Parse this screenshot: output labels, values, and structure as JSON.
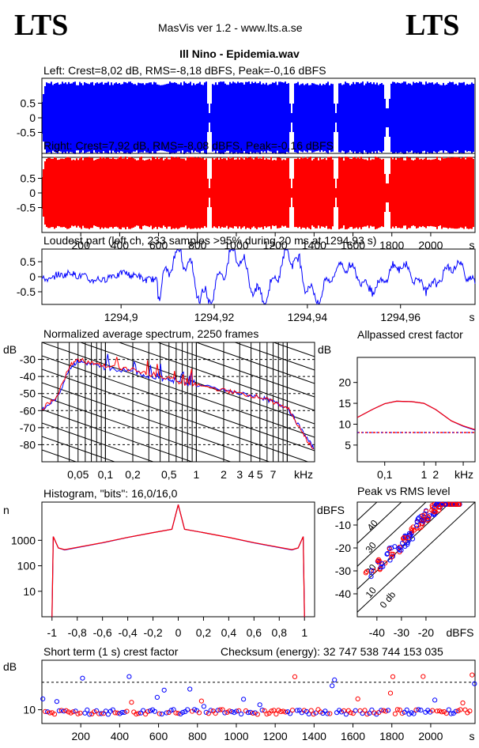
{
  "header": {
    "logo_left": "LTS",
    "logo_right": "LTS",
    "app": "MasVis ver 1.2 - www.lts.a.se",
    "track": "Ill Nino - Epidemia.wav"
  },
  "colors": {
    "left": "#0000ff",
    "right": "#ff0000",
    "grid": "#000000"
  },
  "chart_data": [
    {
      "id": "left-waveform",
      "type": "area",
      "title": "Left: Crest=8,02 dB, RMS=-8,18 dBFS, Peak=-0,16 dBFS",
      "yticks": [
        "0.5",
        "0",
        "-0.5"
      ],
      "ylim": [
        -1,
        1
      ],
      "xlim": [
        0,
        2228
      ],
      "series": [
        {
          "name": "Left",
          "color": "#0000ff"
        }
      ]
    },
    {
      "id": "right-waveform",
      "type": "area",
      "title": "Right: Crest=7,92 dB, RMS=-8,08 dBFS, Peak=-0,16 dBFS",
      "yticks": [
        "0.5",
        "0",
        "-0.5"
      ],
      "ylim": [
        -1,
        1
      ],
      "xlim": [
        0,
        2228
      ],
      "xticks": [
        "200",
        "400",
        "600",
        "800",
        "1000",
        "1200",
        "1400",
        "1600",
        "1800",
        "2000"
      ],
      "xunit": "s",
      "series": [
        {
          "name": "Right",
          "color": "#ff0000"
        }
      ]
    },
    {
      "id": "loudest-part",
      "type": "line",
      "title": "Loudest part (left  ch, 233 samples >95% during 20 ms at 1294,93 s)",
      "yticks": [
        "0.5",
        "0",
        "-0.5"
      ],
      "ylim": [
        -1,
        1
      ],
      "xticks": [
        "1294,9",
        "1294,92",
        "1294,94",
        "1294,96"
      ],
      "xunit": "s",
      "xlim": [
        1294.883,
        1294.976
      ]
    },
    {
      "id": "avg-spectrum",
      "type": "line",
      "title": "Normalized average spectrum, 2250 frames",
      "ylabel": "dB",
      "yticks": [
        "-30",
        "-40",
        "-50",
        "-60",
        "-70",
        "-80"
      ],
      "ylim": [
        -90,
        -20
      ],
      "xticks": [
        "0,05",
        "0,1",
        "0,2",
        "0,5",
        "1",
        "2",
        "3",
        "4",
        "5",
        "7"
      ],
      "xunit": "kHz",
      "x": [
        0.02,
        0.03,
        0.04,
        0.05,
        0.07,
        0.1,
        0.2,
        0.3,
        0.5,
        0.7,
        1,
        2,
        3,
        5,
        7,
        10,
        15,
        20
      ],
      "series": [
        {
          "name": "Left",
          "color": "#0000ff",
          "values": [
            -60,
            -52,
            -35,
            -31,
            -33,
            -35,
            -37,
            -40,
            -42,
            -44,
            -45,
            -48,
            -50,
            -52,
            -55,
            -58,
            -73,
            -83
          ]
        },
        {
          "name": "Right",
          "color": "#ff0000",
          "values": [
            -59,
            -51,
            -34,
            -30,
            -32,
            -34,
            -36,
            -39,
            -41,
            -44,
            -45,
            -48,
            -50,
            -52,
            -55,
            -58,
            -74,
            -84
          ]
        }
      ]
    },
    {
      "id": "allpassed-crest",
      "type": "line",
      "title": "Allpassed crest factor",
      "ylabel": "dB",
      "yticks": [
        "20",
        "15",
        "10",
        "5"
      ],
      "ylim": [
        1,
        26
      ],
      "xticks": [
        "0,1",
        "1",
        "2"
      ],
      "xunit": "kHz",
      "x": [
        0.02,
        0.05,
        0.1,
        0.2,
        0.5,
        1,
        2,
        5,
        10,
        20
      ],
      "series": [
        {
          "name": "Left",
          "color": "#0000ff",
          "values": [
            11.6,
            13.6,
            14.9,
            15.5,
            15.4,
            15,
            13.5,
            10.8,
            9.5,
            8.6
          ]
        },
        {
          "name": "Right",
          "color": "#ff0000",
          "values": [
            11.6,
            13.6,
            14.9,
            15.5,
            15.4,
            15,
            13.5,
            10.8,
            9.6,
            8.7
          ]
        }
      ],
      "reference_line": 8
    },
    {
      "id": "histogram",
      "type": "line",
      "title": "Histogram, \"bits\": 16,0/16,0",
      "ylabel": "n",
      "yticks": [
        "1000",
        "100",
        "10"
      ],
      "xticks": [
        "-1",
        "-0,8",
        "-0,6",
        "-0,4",
        "-0,2",
        "0",
        "0,2",
        "0,4",
        "0,6",
        "0,8",
        "1"
      ],
      "xlim": [
        -1.08,
        1.08
      ],
      "x": [
        -1,
        -0.99,
        -0.95,
        -0.9,
        -0.8,
        -0.6,
        -0.4,
        -0.2,
        -0.05,
        0,
        0.05,
        0.2,
        0.4,
        0.6,
        0.8,
        0.9,
        0.95,
        0.99,
        1
      ],
      "series": [
        {
          "name": "Left",
          "color": "#0000ff",
          "values": [
            1,
            1400,
            500,
            420,
            520,
            800,
            1300,
            2000,
            2700,
            25000,
            2700,
            2000,
            1300,
            800,
            520,
            420,
            500,
            1400,
            1
          ]
        },
        {
          "name": "Right",
          "color": "#ff0000",
          "values": [
            1,
            1400,
            500,
            430,
            530,
            810,
            1310,
            2010,
            2710,
            25000,
            2710,
            2010,
            1310,
            810,
            530,
            430,
            500,
            1400,
            1
          ]
        }
      ]
    },
    {
      "id": "peak-vs-rms",
      "type": "scatter",
      "title": "Peak vs RMS level",
      "ylabel": "dBFS",
      "xlabel": "dBFS",
      "yticks": [
        "-10",
        "-20",
        "-30",
        "-40"
      ],
      "xticks": [
        "-40",
        "-30",
        "-20"
      ],
      "xlim": [
        -48,
        0
      ],
      "ylim": [
        -50,
        0
      ],
      "diagonal_labels": [
        "40",
        "30",
        "20",
        "10",
        "0 db"
      ]
    },
    {
      "id": "short-term-crest",
      "type": "scatter",
      "title": "Short term (1 s) crest factor",
      "checksum": "Checksum (energy):  32 747 538 744 153 035",
      "ylabel": "dB",
      "yticks": [
        "10"
      ],
      "xunit": "s",
      "xticks": [
        "200",
        "400",
        "600",
        "800",
        "1000",
        "1200",
        "1400",
        "1600",
        "1800",
        "2000"
      ],
      "xlim": [
        0,
        2228
      ],
      "reference_line": 20
    }
  ]
}
